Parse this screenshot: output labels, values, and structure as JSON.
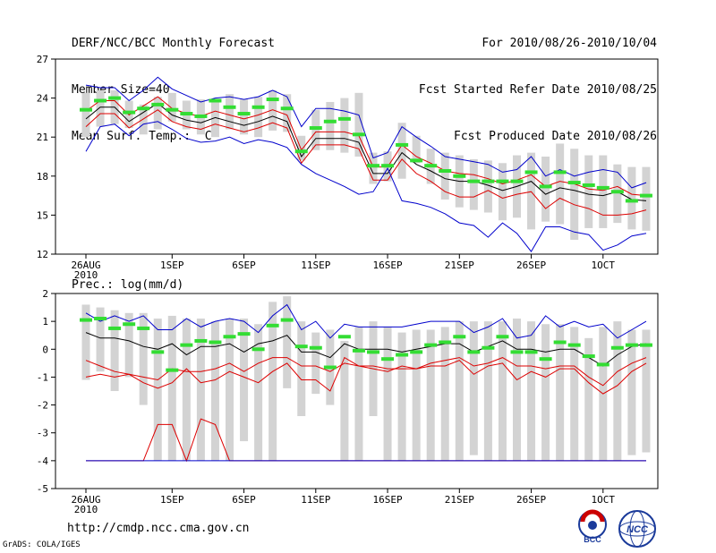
{
  "header": {
    "title": "DERF/NCC/BCC Monthly Forecast",
    "member_size": "Member Size=40",
    "variable": "Mean Surf. Temp.: °C",
    "forecast_period": "For 2010/08/26-2010/10/04",
    "refer_date": "Fcst Started Refer Date 2010/08/25",
    "produced_date": "Fcst Produced Date 2010/08/26"
  },
  "footer": {
    "url": "http://cmdp.ncc.cma.gov.cn",
    "grads_credit": "GrADS: COLA/IGES",
    "logo_left_text": "BCC",
    "logo_right_text": "NCC"
  },
  "colors": {
    "box": "#d3d3d3",
    "median": "#33dd33",
    "mean": "#000000",
    "red": "#dd0000",
    "blue": "#0000cc"
  },
  "chart_data": [
    {
      "type": "box-line",
      "title": "Mean Surf. Temp.: °C",
      "ylabel": "°C",
      "ylim": [
        12,
        27
      ],
      "yticks": [
        12,
        15,
        18,
        21,
        24,
        27
      ],
      "xtick_labels": [
        {
          "day": 1,
          "label": "26AUG",
          "sub": "2010"
        },
        {
          "day": 7,
          "label": "1SEP"
        },
        {
          "day": 12,
          "label": "6SEP"
        },
        {
          "day": 17,
          "label": "11SEP"
        },
        {
          "day": 22,
          "label": "16SEP"
        },
        {
          "day": 27,
          "label": "21SEP"
        },
        {
          "day": 32,
          "label": "26SEP"
        },
        {
          "day": 37,
          "label": "1OCT"
        }
      ],
      "days": 40,
      "box_low": [
        21.0,
        21.8,
        22.0,
        21.7,
        21.2,
        21.6,
        22.2,
        21.6,
        21.2,
        21.0,
        21.6,
        21.2,
        21.0,
        21.5,
        21.4,
        19.2,
        20.0,
        20.0,
        19.8,
        19.5,
        17.4,
        17.6,
        17.8,
        19.0,
        17.4,
        16.2,
        15.6,
        15.4,
        15.2,
        14.6,
        14.8,
        13.9,
        14.5,
        14.3,
        13.1,
        14.0,
        14.0,
        14.4,
        13.9,
        13.8
      ],
      "box_high": [
        24.4,
        24.6,
        24.6,
        23.8,
        23.5,
        24.1,
        24.4,
        23.8,
        23.9,
        23.9,
        24.3,
        23.9,
        24.1,
        24.6,
        24.3,
        21.1,
        23.1,
        23.7,
        24.0,
        24.4,
        19.8,
        19.9,
        22.1,
        21.1,
        20.1,
        19.8,
        19.6,
        19.3,
        19.2,
        19.0,
        19.6,
        19.8,
        19.5,
        20.5,
        20.1,
        19.6,
        19.6,
        18.9,
        18.7,
        18.7
      ],
      "median": [
        23.1,
        23.8,
        24.0,
        22.9,
        23.2,
        23.5,
        23.1,
        22.8,
        22.6,
        23.8,
        23.3,
        22.8,
        23.3,
        23.9,
        23.2,
        19.9,
        21.7,
        22.2,
        22.4,
        21.2,
        18.8,
        18.8,
        20.4,
        19.2,
        18.8,
        18.4,
        18.0,
        17.6,
        17.6,
        17.6,
        17.6,
        18.3,
        17.2,
        18.3,
        17.5,
        17.3,
        17.1,
        16.8,
        16.1,
        16.5
      ],
      "series": [
        {
          "name": "mean",
          "color": "#000000",
          "values": [
            22.4,
            23.3,
            23.3,
            22.2,
            22.9,
            23.6,
            22.7,
            22.3,
            22.1,
            22.5,
            22.2,
            21.9,
            22.2,
            22.6,
            22.2,
            19.5,
            20.9,
            20.9,
            20.9,
            20.6,
            18.2,
            18.2,
            19.8,
            18.9,
            18.4,
            17.8,
            17.6,
            17.6,
            17.3,
            16.9,
            17.2,
            17.6,
            16.6,
            17.1,
            16.9,
            16.6,
            16.5,
            16.8,
            16.2,
            16.1
          ]
        },
        {
          "name": "mean+sd",
          "color": "#dd0000",
          "values": [
            23.0,
            23.8,
            23.8,
            22.7,
            23.4,
            24.1,
            23.2,
            22.8,
            22.6,
            23.0,
            22.7,
            22.4,
            22.7,
            23.1,
            22.7,
            20.0,
            21.4,
            21.4,
            21.4,
            21.1,
            18.7,
            18.7,
            20.4,
            19.5,
            19.0,
            18.4,
            18.2,
            18.1,
            17.8,
            17.4,
            17.7,
            18.1,
            17.2,
            17.6,
            17.4,
            17.0,
            16.9,
            17.2,
            16.6,
            16.5
          ]
        },
        {
          "name": "mean-sd",
          "color": "#dd0000",
          "values": [
            21.8,
            22.8,
            22.8,
            21.7,
            22.4,
            23.1,
            22.2,
            21.8,
            21.6,
            22.0,
            21.7,
            21.4,
            21.7,
            22.1,
            21.7,
            19.0,
            20.4,
            20.4,
            20.4,
            20.1,
            17.7,
            17.7,
            19.3,
            18.2,
            17.6,
            16.8,
            16.4,
            16.4,
            16.9,
            16.3,
            16.6,
            16.8,
            15.5,
            16.3,
            15.8,
            15.5,
            15.0,
            15.0,
            15.1,
            15.4
          ]
        },
        {
          "name": "max",
          "color": "#0000cc",
          "values": [
            25.0,
            24.8,
            24.8,
            23.8,
            24.6,
            25.6,
            24.7,
            24.2,
            23.7,
            24.0,
            24.1,
            23.9,
            24.1,
            24.6,
            24.1,
            21.8,
            23.2,
            23.2,
            23.0,
            22.7,
            19.4,
            19.8,
            21.8,
            21.0,
            20.3,
            19.5,
            19.3,
            19.1,
            18.9,
            18.3,
            18.5,
            19.5,
            18.0,
            18.5,
            18.0,
            18.3,
            18.5,
            18.3,
            17.1,
            17.5
          ]
        },
        {
          "name": "min",
          "color": "#0000cc",
          "values": [
            19.9,
            21.8,
            22.0,
            21.1,
            22.0,
            22.2,
            21.6,
            20.9,
            20.6,
            20.7,
            21.0,
            20.5,
            20.8,
            20.6,
            20.2,
            18.9,
            18.2,
            17.7,
            17.2,
            16.6,
            16.8,
            18.6,
            16.1,
            15.9,
            15.6,
            15.1,
            14.4,
            14.2,
            13.3,
            14.4,
            13.6,
            12.2,
            14.1,
            14.1,
            13.7,
            13.5,
            12.3,
            12.7,
            13.4,
            13.6
          ]
        }
      ]
    },
    {
      "type": "box-line",
      "title": "Prec.: log(mm/d)",
      "ylabel": "log(mm/d)",
      "ylim": [
        -5,
        2
      ],
      "yticks": [
        -5,
        -4,
        -3,
        -2,
        -1,
        0,
        1,
        2
      ],
      "xtick_labels": [
        {
          "day": 1,
          "label": "26AUG",
          "sub": "2010"
        },
        {
          "day": 7,
          "label": "1SEP"
        },
        {
          "day": 12,
          "label": "6SEP"
        },
        {
          "day": 17,
          "label": "11SEP"
        },
        {
          "day": 22,
          "label": "16SEP"
        },
        {
          "day": 27,
          "label": "21SEP"
        },
        {
          "day": 32,
          "label": "26SEP"
        },
        {
          "day": 37,
          "label": "1OCT"
        }
      ],
      "days": 40,
      "box_low": [
        -1.1,
        -0.8,
        -1.5,
        -1.0,
        -2.0,
        -4.0,
        -4.0,
        -4.0,
        -4.0,
        -4.0,
        -4.0,
        -3.3,
        -4.0,
        -4.0,
        -1.4,
        -2.4,
        -1.6,
        -2.0,
        -4.0,
        -4.0,
        -2.4,
        -4.0,
        -4.0,
        -4.0,
        -4.0,
        -4.0,
        -4.0,
        -3.8,
        -4.0,
        -4.0,
        -4.0,
        -4.0,
        -4.0,
        -4.0,
        -4.0,
        -4.0,
        -4.0,
        -4.0,
        -3.8,
        -3.7
      ],
      "box_high": [
        1.6,
        1.5,
        1.4,
        1.3,
        1.3,
        1.1,
        1.2,
        1.1,
        1.1,
        1.0,
        1.1,
        1.1,
        0.9,
        1.7,
        1.9,
        1.0,
        0.6,
        0.7,
        0.3,
        0.8,
        1.0,
        0.8,
        0.6,
        0.7,
        0.7,
        0.8,
        1.0,
        1.0,
        1.0,
        1.0,
        1.1,
        1.0,
        0.9,
        0.9,
        0.8,
        0.4,
        0.8,
        1.0,
        0.7,
        0.7
      ],
      "median": [
        1.05,
        1.1,
        0.75,
        0.9,
        0.75,
        -0.1,
        -0.75,
        0.15,
        0.3,
        0.25,
        0.45,
        0.55,
        0.0,
        0.85,
        1.05,
        0.1,
        0.05,
        -0.65,
        0.45,
        -0.05,
        -0.1,
        -0.35,
        -0.2,
        -0.1,
        0.15,
        0.25,
        0.45,
        -0.1,
        0.05,
        0.45,
        -0.1,
        -0.1,
        -0.35,
        0.25,
        0.15,
        -0.25,
        -0.55,
        0.05,
        0.15,
        0.15
      ],
      "series": [
        {
          "name": "mean",
          "color": "#000000",
          "values": [
            0.6,
            0.4,
            0.4,
            0.3,
            0.1,
            0.0,
            0.2,
            -0.2,
            0.1,
            0.1,
            0.2,
            -0.1,
            0.2,
            0.3,
            0.5,
            -0.1,
            -0.1,
            -0.3,
            0.2,
            0.0,
            0.0,
            0.0,
            -0.1,
            0.0,
            0.1,
            0.2,
            0.2,
            -0.1,
            0.1,
            0.3,
            0.0,
            0.0,
            -0.1,
            0.0,
            0.0,
            -0.3,
            -0.6,
            -0.2,
            0.1,
            0.2
          ]
        },
        {
          "name": "mean+sd",
          "color": "#dd0000",
          "values": [
            -0.4,
            -0.6,
            -0.8,
            -0.9,
            -1.0,
            -1.1,
            -0.7,
            -0.8,
            -0.8,
            -0.7,
            -0.5,
            -0.8,
            -0.5,
            -0.3,
            -0.3,
            -0.6,
            -0.6,
            -0.8,
            -0.5,
            -0.6,
            -0.6,
            -0.7,
            -0.7,
            -0.7,
            -0.5,
            -0.4,
            -0.3,
            -0.6,
            -0.5,
            -0.3,
            -0.6,
            -0.6,
            -0.7,
            -0.6,
            -0.6,
            -1.0,
            -1.3,
            -0.8,
            -0.5,
            -0.3
          ]
        },
        {
          "name": "mean-sd",
          "color": "#dd0000",
          "values": [
            -1.0,
            -0.9,
            -1.0,
            -0.9,
            -1.2,
            -1.4,
            -1.2,
            -0.7,
            -1.2,
            -1.1,
            -0.8,
            -1.0,
            -1.2,
            -0.8,
            -0.5,
            -1.1,
            -1.1,
            -1.5,
            -0.3,
            -0.6,
            -0.7,
            -0.8,
            -0.6,
            -0.7,
            -0.6,
            -0.6,
            -0.4,
            -0.9,
            -0.6,
            -0.5,
            -1.1,
            -0.8,
            -1.0,
            -0.7,
            -0.7,
            -1.2,
            -1.6,
            -1.3,
            -0.8,
            -0.5
          ]
        },
        {
          "name": "min-red",
          "color": "#dd0000",
          "values": [
            -4.0,
            -4.0,
            -4.0,
            -4.0,
            -4.0,
            -2.7,
            -2.7,
            -4.0,
            -2.5,
            -2.7,
            -4.0,
            -4.0,
            -4.0,
            -4.0,
            -4.0,
            -4.0,
            -4.0,
            -4.0,
            -4.0,
            -4.0,
            -4.0,
            -4.0,
            -4.0,
            -4.0,
            -4.0,
            -4.0,
            -4.0,
            -4.0,
            -4.0,
            -4.0,
            -4.0,
            -4.0,
            -4.0,
            -4.0,
            -4.0,
            -4.0,
            -4.0,
            -4.0,
            -4.0,
            -4.0
          ]
        },
        {
          "name": "max",
          "color": "#0000cc",
          "values": [
            1.3,
            1.0,
            1.2,
            1.0,
            1.2,
            0.7,
            0.7,
            1.1,
            0.8,
            1.0,
            1.1,
            1.0,
            0.6,
            1.2,
            1.6,
            0.7,
            1.0,
            0.4,
            0.9,
            0.8,
            0.8,
            0.8,
            0.8,
            0.9,
            1.0,
            1.0,
            1.0,
            0.6,
            0.8,
            1.1,
            0.4,
            0.5,
            1.2,
            0.8,
            1.0,
            0.8,
            0.9,
            0.4,
            0.7,
            1.0
          ]
        },
        {
          "name": "min-blue",
          "color": "#0000cc",
          "values": [
            -4.0,
            -4.0,
            -4.0,
            -4.0,
            -4.0,
            -4.0,
            -4.0,
            -4.0,
            -4.0,
            -4.0,
            -4.0,
            -4.0,
            -4.0,
            -4.0,
            -4.0,
            -4.0,
            -4.0,
            -4.0,
            -4.0,
            -4.0,
            -4.0,
            -4.0,
            -4.0,
            -4.0,
            -4.0,
            -4.0,
            -4.0,
            -4.0,
            -4.0,
            -4.0,
            -4.0,
            -4.0,
            -4.0,
            -4.0,
            -4.0,
            -4.0,
            -4.0,
            -4.0,
            -4.0,
            -4.0
          ]
        }
      ]
    }
  ]
}
